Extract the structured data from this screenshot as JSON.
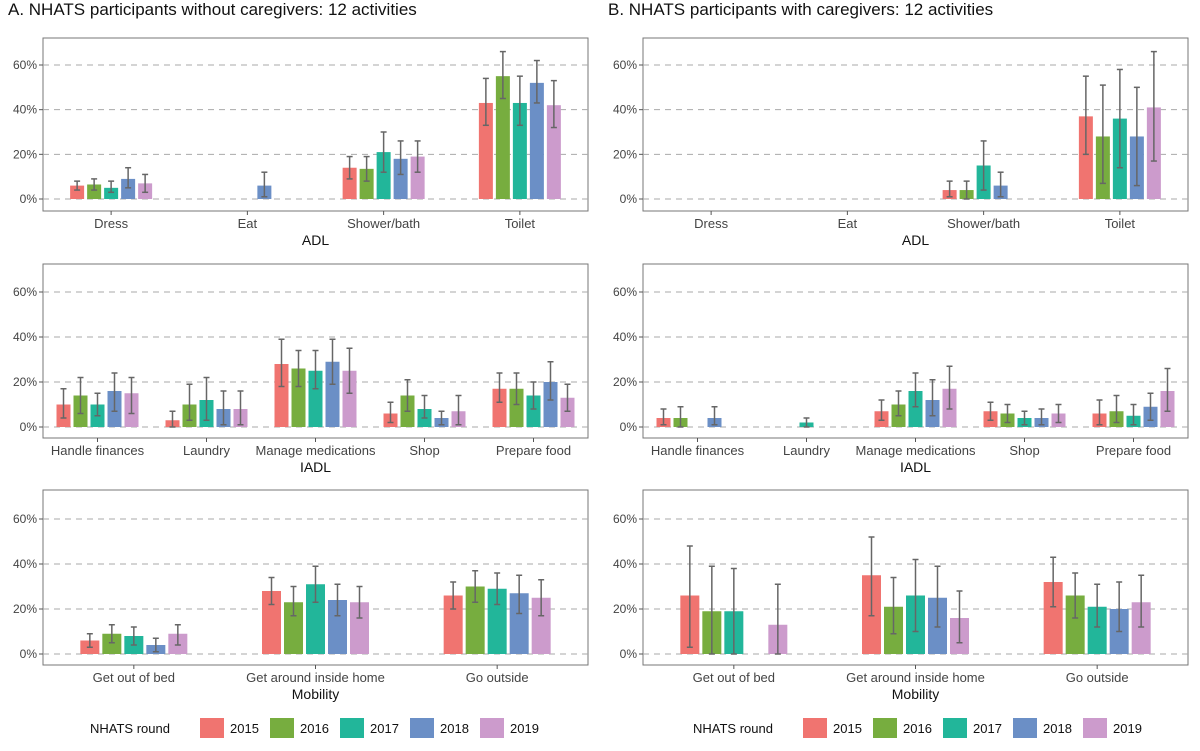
{
  "panels": {
    "a_title": "A. NHATS participants without caregivers: 12 activities",
    "b_title": "B. NHATS participants with caregivers: 12 activities"
  },
  "legend": {
    "title": "NHATS round",
    "rounds": [
      "2015",
      "2016",
      "2017",
      "2018",
      "2019"
    ],
    "colors": [
      "#F07470",
      "#77AD3F",
      "#22B69A",
      "#6B8FC6",
      "#CC9BCC"
    ]
  },
  "chart_data": [
    {
      "type": "bar",
      "panel": "A",
      "xlabel": "ADL",
      "ylabel": "",
      "ylim": [
        0,
        0.6
      ],
      "yticks": [
        "0%",
        "20%",
        "40%",
        "60%"
      ],
      "categories": [
        "Dress",
        "Eat",
        "Shower/bath",
        "Toilet"
      ],
      "series": [
        {
          "name": "2015",
          "values": [
            0.06,
            null,
            0.14,
            0.43
          ],
          "lo": [
            0.04,
            null,
            0.09,
            0.33
          ],
          "hi": [
            0.08,
            null,
            0.19,
            0.54
          ]
        },
        {
          "name": "2016",
          "values": [
            0.065,
            null,
            0.135,
            0.55
          ],
          "lo": [
            0.04,
            null,
            0.08,
            0.45
          ],
          "hi": [
            0.09,
            null,
            0.19,
            0.66
          ]
        },
        {
          "name": "2017",
          "values": [
            0.05,
            null,
            0.21,
            0.43
          ],
          "lo": [
            0.03,
            null,
            0.12,
            0.33
          ],
          "hi": [
            0.08,
            null,
            0.3,
            0.55
          ]
        },
        {
          "name": "2018",
          "values": [
            0.09,
            0.06,
            0.18,
            0.52
          ],
          "lo": [
            0.05,
            0.01,
            0.11,
            0.43
          ],
          "hi": [
            0.14,
            0.12,
            0.26,
            0.62
          ]
        },
        {
          "name": "2019",
          "values": [
            0.07,
            null,
            0.19,
            0.42
          ],
          "lo": [
            0.03,
            null,
            0.12,
            0.32
          ],
          "hi": [
            0.11,
            null,
            0.26,
            0.53
          ]
        }
      ]
    },
    {
      "type": "bar",
      "panel": "B",
      "xlabel": "ADL",
      "ylabel": "",
      "ylim": [
        0,
        0.6
      ],
      "yticks": [
        "0%",
        "20%",
        "40%",
        "60%"
      ],
      "categories": [
        "Dress",
        "Eat",
        "Shower/bath",
        "Toilet"
      ],
      "series": [
        {
          "name": "2015",
          "values": [
            null,
            null,
            0.04,
            0.37
          ],
          "lo": [
            null,
            null,
            0.01,
            0.2
          ],
          "hi": [
            null,
            null,
            0.08,
            0.55
          ]
        },
        {
          "name": "2016",
          "values": [
            null,
            null,
            0.04,
            0.28
          ],
          "lo": [
            null,
            null,
            0.0,
            0.07
          ],
          "hi": [
            null,
            null,
            0.08,
            0.51
          ]
        },
        {
          "name": "2017",
          "values": [
            null,
            null,
            0.15,
            0.36
          ],
          "lo": [
            null,
            null,
            0.04,
            0.14
          ],
          "hi": [
            null,
            null,
            0.26,
            0.58
          ]
        },
        {
          "name": "2018",
          "values": [
            null,
            null,
            0.06,
            0.28
          ],
          "lo": [
            null,
            null,
            0.01,
            0.06
          ],
          "hi": [
            null,
            null,
            0.12,
            0.5
          ]
        },
        {
          "name": "2019",
          "values": [
            null,
            null,
            null,
            0.41
          ],
          "lo": [
            null,
            null,
            null,
            0.17
          ],
          "hi": [
            null,
            null,
            null,
            0.66
          ]
        }
      ]
    },
    {
      "type": "bar",
      "panel": "A",
      "xlabel": "IADL",
      "ylabel": "",
      "ylim": [
        0,
        0.6
      ],
      "yticks": [
        "0%",
        "20%",
        "40%",
        "60%"
      ],
      "categories": [
        "Handle finances",
        "Laundry",
        "Manage medications",
        "Shop",
        "Prepare food"
      ],
      "series": [
        {
          "name": "2015",
          "values": [
            0.1,
            0.03,
            0.28,
            0.06,
            0.17
          ],
          "lo": [
            0.04,
            0.0,
            0.18,
            0.02,
            0.11
          ],
          "hi": [
            0.17,
            0.07,
            0.39,
            0.11,
            0.24
          ]
        },
        {
          "name": "2016",
          "values": [
            0.14,
            0.1,
            0.26,
            0.14,
            0.17
          ],
          "lo": [
            0.06,
            0.03,
            0.18,
            0.07,
            0.1
          ],
          "hi": [
            0.22,
            0.19,
            0.34,
            0.21,
            0.24
          ]
        },
        {
          "name": "2017",
          "values": [
            0.1,
            0.12,
            0.25,
            0.08,
            0.14
          ],
          "lo": [
            0.05,
            0.03,
            0.17,
            0.04,
            0.08
          ],
          "hi": [
            0.15,
            0.22,
            0.34,
            0.14,
            0.2
          ]
        },
        {
          "name": "2018",
          "values": [
            0.16,
            0.08,
            0.29,
            0.04,
            0.2
          ],
          "lo": [
            0.07,
            0.01,
            0.19,
            0.01,
            0.12
          ],
          "hi": [
            0.24,
            0.16,
            0.39,
            0.07,
            0.29
          ]
        },
        {
          "name": "2019",
          "values": [
            0.15,
            0.08,
            0.25,
            0.07,
            0.13
          ],
          "lo": [
            0.06,
            0.01,
            0.15,
            0.01,
            0.07
          ],
          "hi": [
            0.22,
            0.16,
            0.35,
            0.14,
            0.19
          ]
        }
      ]
    },
    {
      "type": "bar",
      "panel": "B",
      "xlabel": "IADL",
      "ylabel": "",
      "ylim": [
        0,
        0.6
      ],
      "yticks": [
        "0%",
        "20%",
        "40%",
        "60%"
      ],
      "categories": [
        "Handle finances",
        "Laundry",
        "Manage medications",
        "Shop",
        "Prepare food"
      ],
      "series": [
        {
          "name": "2015",
          "values": [
            0.04,
            null,
            0.07,
            0.07,
            0.06
          ],
          "lo": [
            0.01,
            null,
            0.03,
            0.03,
            0.01
          ],
          "hi": [
            0.08,
            null,
            0.12,
            0.11,
            0.12
          ]
        },
        {
          "name": "2016",
          "values": [
            0.04,
            null,
            0.1,
            0.06,
            0.07
          ],
          "lo": [
            0.0,
            null,
            0.05,
            0.02,
            0.02
          ],
          "hi": [
            0.09,
            null,
            0.16,
            0.1,
            0.14
          ]
        },
        {
          "name": "2017",
          "values": [
            null,
            0.02,
            0.16,
            0.04,
            0.05
          ],
          "lo": [
            null,
            0.0,
            0.09,
            0.01,
            0.01
          ],
          "hi": [
            null,
            0.04,
            0.24,
            0.07,
            0.1
          ]
        },
        {
          "name": "2018",
          "values": [
            0.04,
            null,
            0.12,
            0.04,
            0.09
          ],
          "lo": [
            0.01,
            null,
            0.05,
            0.01,
            0.03
          ],
          "hi": [
            0.09,
            null,
            0.21,
            0.08,
            0.15
          ]
        },
        {
          "name": "2019",
          "values": [
            null,
            null,
            0.17,
            0.06,
            0.16
          ],
          "lo": [
            null,
            null,
            0.08,
            0.02,
            0.07
          ],
          "hi": [
            null,
            null,
            0.27,
            0.1,
            0.26
          ]
        }
      ]
    },
    {
      "type": "bar",
      "panel": "A",
      "xlabel": "Mobility",
      "ylabel": "",
      "ylim": [
        0,
        0.6
      ],
      "yticks": [
        "0%",
        "20%",
        "40%",
        "60%"
      ],
      "categories": [
        "Get out of bed",
        "Get around inside home",
        "Go outside"
      ],
      "series": [
        {
          "name": "2015",
          "values": [
            0.06,
            0.28,
            0.26
          ],
          "lo": [
            0.03,
            0.22,
            0.2
          ],
          "hi": [
            0.09,
            0.34,
            0.32
          ]
        },
        {
          "name": "2016",
          "values": [
            0.09,
            0.23,
            0.3
          ],
          "lo": [
            0.05,
            0.17,
            0.23
          ],
          "hi": [
            0.13,
            0.3,
            0.37
          ]
        },
        {
          "name": "2017",
          "values": [
            0.08,
            0.31,
            0.29
          ],
          "lo": [
            0.04,
            0.23,
            0.22
          ],
          "hi": [
            0.12,
            0.39,
            0.36
          ]
        },
        {
          "name": "2018",
          "values": [
            0.04,
            0.24,
            0.27
          ],
          "lo": [
            0.01,
            0.17,
            0.18
          ],
          "hi": [
            0.07,
            0.31,
            0.35
          ]
        },
        {
          "name": "2019",
          "values": [
            0.09,
            0.23,
            0.25
          ],
          "lo": [
            0.04,
            0.16,
            0.17
          ],
          "hi": [
            0.13,
            0.3,
            0.33
          ]
        }
      ]
    },
    {
      "type": "bar",
      "panel": "B",
      "xlabel": "Mobility",
      "ylabel": "",
      "ylim": [
        0,
        0.6
      ],
      "yticks": [
        "0%",
        "20%",
        "40%",
        "60%"
      ],
      "categories": [
        "Get out of bed",
        "Get around inside home",
        "Go outside"
      ],
      "series": [
        {
          "name": "2015",
          "values": [
            0.26,
            0.35,
            0.32
          ],
          "lo": [
            0.03,
            0.17,
            0.21
          ],
          "hi": [
            0.48,
            0.52,
            0.43
          ]
        },
        {
          "name": "2016",
          "values": [
            0.19,
            0.21,
            0.26
          ],
          "lo": [
            0.0,
            0.09,
            0.16
          ],
          "hi": [
            0.39,
            0.34,
            0.36
          ]
        },
        {
          "name": "2017",
          "values": [
            0.19,
            0.26,
            0.21
          ],
          "lo": [
            0.0,
            0.1,
            0.12
          ],
          "hi": [
            0.38,
            0.42,
            0.31
          ]
        },
        {
          "name": "2018",
          "values": [
            null,
            0.25,
            0.2
          ],
          "lo": [
            null,
            0.12,
            0.1
          ],
          "hi": [
            null,
            0.39,
            0.32
          ]
        },
        {
          "name": "2019",
          "values": [
            0.13,
            0.16,
            0.23
          ],
          "lo": [
            0.0,
            0.05,
            0.12
          ],
          "hi": [
            0.31,
            0.28,
            0.35
          ]
        }
      ]
    }
  ]
}
